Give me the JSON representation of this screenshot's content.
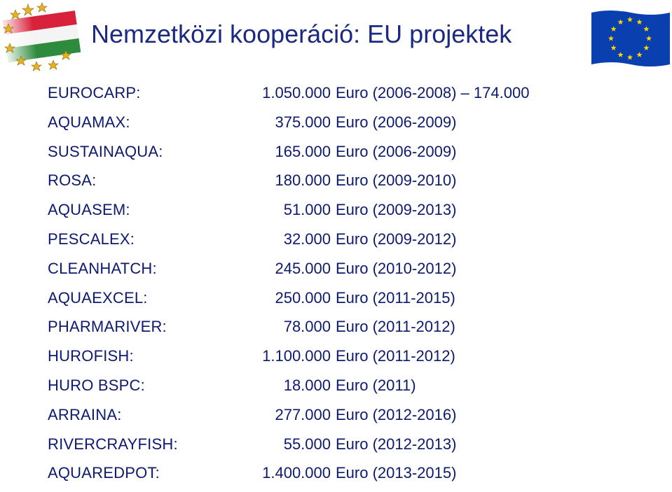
{
  "title": "Nemzetközi kooperáció: EU projektek",
  "projects": [
    {
      "name": "EUROCARP:",
      "amount": "1.050.000",
      "period": "Euro (2006-2008) – 174.000"
    },
    {
      "name": "AQUAMAX:",
      "amount": "375.000",
      "period": "Euro (2006-2009)"
    },
    {
      "name": "SUSTAINAQUA:",
      "amount": "165.000",
      "period": "Euro (2006-2009)"
    },
    {
      "name": "ROSA:",
      "amount": "180.000",
      "period": "Euro (2009-2010)"
    },
    {
      "name": "AQUASEM:",
      "amount": "51.000",
      "period": "Euro (2009-2013)"
    },
    {
      "name": "PESCALEX:",
      "amount": "32.000",
      "period": "Euro (2009-2012)"
    },
    {
      "name": "CLEANHATCH:",
      "amount": "245.000",
      "period": "Euro (2010-2012)"
    },
    {
      "name": "AQUAEXCEL:",
      "amount": "250.000",
      "period": "Euro (2011-2015)"
    },
    {
      "name": "PHARMARIVER:",
      "amount": "78.000",
      "period": "Euro (2011-2012)"
    },
    {
      "name": "HUROFISH:",
      "amount": "1.100.000",
      "period": "Euro (2011-2012)"
    },
    {
      "name": "HURO BSPC:",
      "amount": "18.000",
      "period": "Euro (2011)"
    },
    {
      "name": "ARRAINA:",
      "amount": "277.000",
      "period": "Euro (2012-2016)"
    },
    {
      "name": "RIVERCRAYFISH:",
      "amount": "55.000",
      "period": "Euro (2012-2013)"
    },
    {
      "name": "AQUAREDPOT:",
      "amount": "1.400.000",
      "period": "Euro (2013-2015)"
    }
  ],
  "colors": {
    "title": "#1b2a80",
    "text": "#0d1a6e",
    "eu_blue": "#0a3fb0",
    "eu_star": "#ffd400"
  }
}
